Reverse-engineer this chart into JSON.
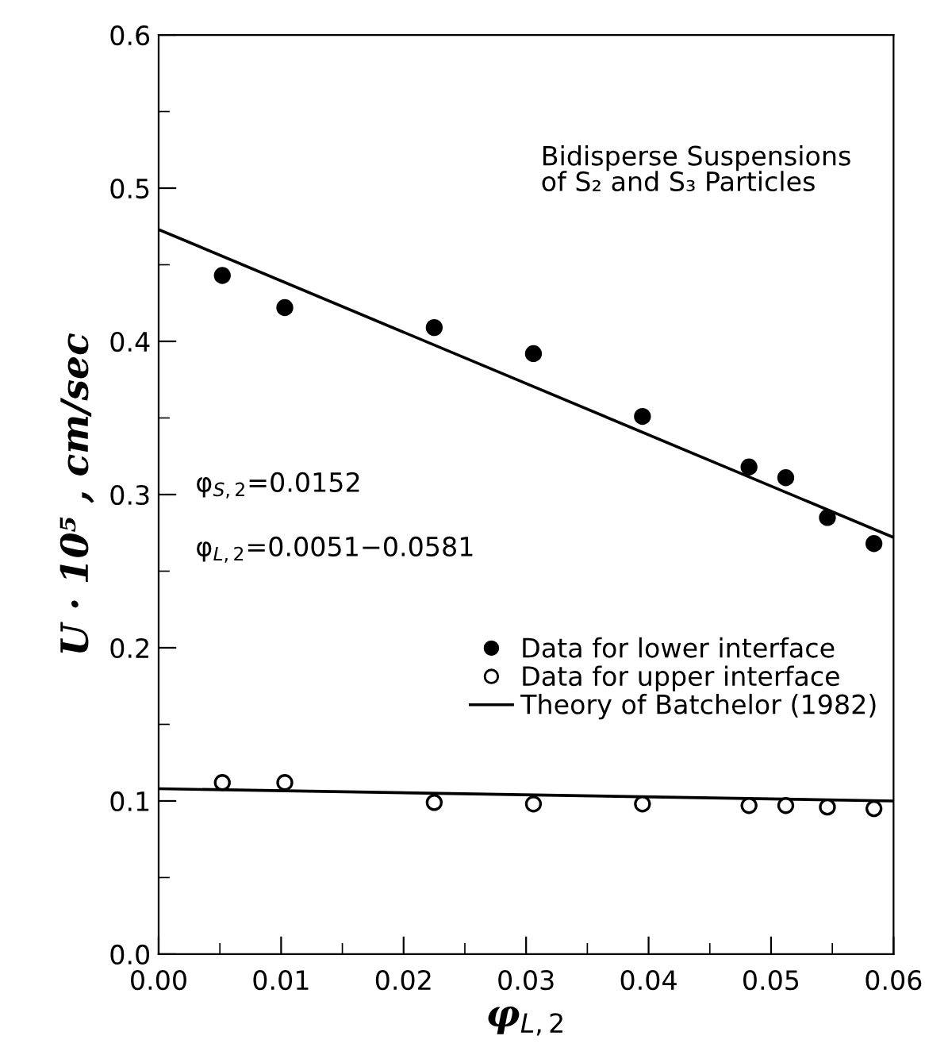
{
  "chart_data": {
    "type": "scatter",
    "xlabel": "φ$_{L,2}$",
    "ylabel": "U · 10⁵ , cm/sec",
    "xlim": [
      0,
      0.06
    ],
    "ylim": [
      0,
      0.6
    ],
    "xticks": [
      {
        "value": 0,
        "label": "0.00"
      },
      {
        "value": 0.01,
        "label": "0.01"
      },
      {
        "value": 0.02,
        "label": "0.02"
      },
      {
        "value": 0.03,
        "label": "0.03"
      },
      {
        "value": 0.04,
        "label": "0.04"
      },
      {
        "value": 0.05,
        "label": "0.05"
      },
      {
        "value": 0.06,
        "label": "0.06"
      }
    ],
    "yticks": [
      {
        "value": 0,
        "label": "0.0"
      },
      0.1,
      0.2,
      0.3,
      0.4,
      0.5,
      0.6
    ],
    "annotations": [
      "Bidisperse Suspensions\nof S₂ and S₃ Particles",
      "φ$_{S,2}$=0.0152",
      "φ$_{L,2}$=0.0051−0.0581"
    ],
    "legend": "right",
    "grid": false,
    "series": [
      {
        "name": "Data for lower interface",
        "marker": "circle",
        "color": "#000000",
        "x": [
          0.0052,
          0.0103,
          0.0225,
          0.0306,
          0.0395,
          0.0482,
          0.0512,
          0.0546,
          0.0584
        ],
        "values": [
          0.443,
          0.422,
          0.409,
          0.392,
          0.351,
          0.318,
          0.311,
          0.285,
          0.268
        ]
      },
      {
        "name": "Data for upper interface",
        "marker": "circle",
        "color": "#ffffff",
        "x": [
          0.0052,
          0.0103,
          0.0225,
          0.0306,
          0.0395,
          0.0482,
          0.0512,
          0.0546,
          0.0584
        ],
        "values": [
          0.112,
          0.112,
          0.099,
          0.098,
          0.098,
          0.097,
          0.097,
          0.096,
          0.095
        ]
      },
      {
        "name": "Theory of Batchelor (1982)",
        "type": "line",
        "color": "#000000",
        "x": [
          0,
          0.06
        ],
        "values": [
          0.473,
          0.272
        ]
      },
      {
        "type": "line",
        "color": "#000000",
        "x": [
          0,
          0.06
        ],
        "values": [
          0.108,
          0.1
        ]
      }
    ]
  }
}
